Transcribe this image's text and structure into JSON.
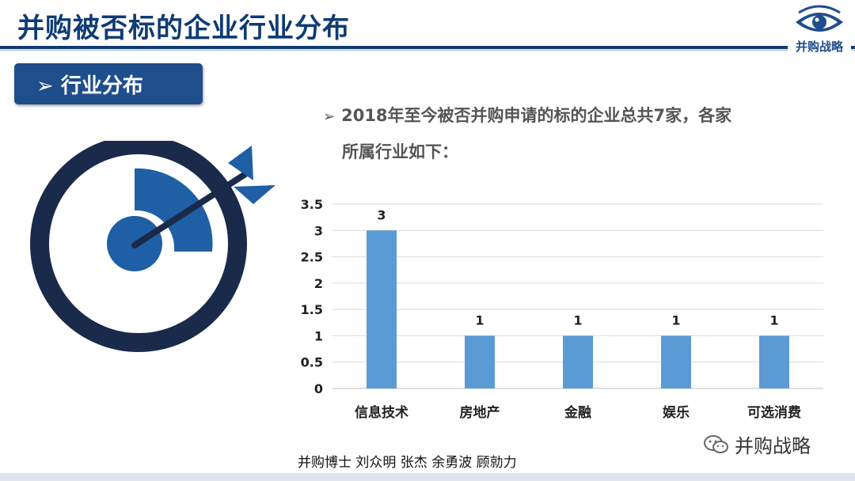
{
  "slide": {
    "title": "并购被否标的企业行业分布",
    "logo_text": "并购战略",
    "section_label": "➢ 行业分布",
    "description_bullet": "➢",
    "description_line1": "2018年至今被否并购申请的标的企业总共7家，各家",
    "description_line2": "所属行业如下：",
    "authors": "并购博士 刘众明 张杰 余勇波 顾勍力",
    "watermark": "并购战略"
  },
  "colors": {
    "brand": "#0f3b73",
    "bar": "#5b9bd5",
    "target_dark": "#1a2a4a",
    "target_blue": "#1f5fa6"
  },
  "icons": [
    "eye-logo-icon",
    "target-arrow-icon",
    "wechat-icon"
  ],
  "chart_data": {
    "type": "bar",
    "categories": [
      "信息技术",
      "房地产",
      "金融",
      "娱乐",
      "可选消费"
    ],
    "values": [
      3,
      1,
      1,
      1,
      1
    ],
    "data_labels": [
      "3",
      "1",
      "1",
      "1",
      "1"
    ],
    "title": "",
    "xlabel": "",
    "ylabel": "",
    "ylim": [
      0,
      3.5
    ],
    "yticks": [
      "0",
      "0.5",
      "1",
      "1.5",
      "2",
      "2.5",
      "3",
      "3.5"
    ],
    "grid": true,
    "legend": "none"
  }
}
